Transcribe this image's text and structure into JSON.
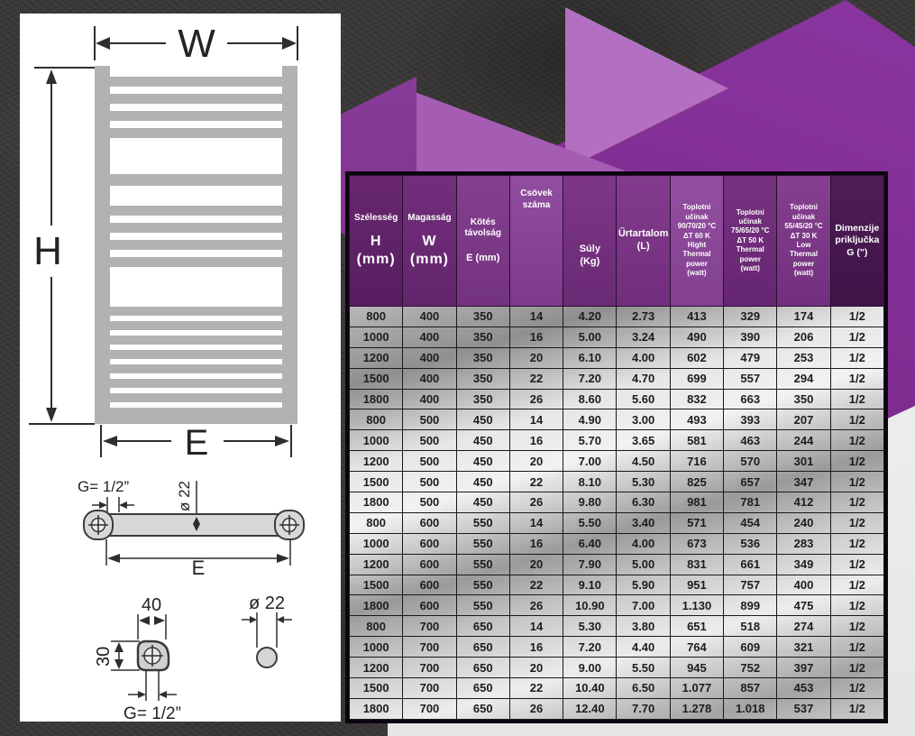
{
  "colors": {
    "accent_purple": "#7c2b8d",
    "accent_purple_light": "#b36fc0",
    "accent_purple_dark": "#4f1d57",
    "table_frame": "#0d0511",
    "panel_white": "#ffffff"
  },
  "diagram": {
    "front_view": {
      "width_label": "W",
      "height_label": "H",
      "bottom_spacing_label": "E"
    },
    "tube_detail": {
      "connection_label": "G= 1/2”",
      "diameter_label": "ø 22",
      "spacing_label": "E"
    },
    "bracket_detail": {
      "width_label": "40",
      "height_label": "30",
      "connection_label": "G= 1/2”"
    },
    "pipe_detail": {
      "diameter_label": "ø 22"
    }
  },
  "table": {
    "columns": [
      {
        "key": "szelesseg",
        "valign": "mid",
        "lines": [
          {
            "t": "Szélesség",
            "cls": "sm"
          },
          {
            "t": "H",
            "cls": "lg mt"
          },
          {
            "t": "(mm)",
            "cls": "lg"
          }
        ]
      },
      {
        "key": "magassag",
        "valign": "mid",
        "lines": [
          {
            "t": "Magasság",
            "cls": "sm"
          },
          {
            "t": "W",
            "cls": "lg mt"
          },
          {
            "t": "(mm)",
            "cls": "lg"
          }
        ]
      },
      {
        "key": "kotes-tavolsag",
        "valign": "mid",
        "lines": [
          {
            "t": "Kötés",
            "cls": "sm"
          },
          {
            "t": "távolság",
            "cls": "sm"
          },
          {
            "t": "E (mm)",
            "cls": "md gap-top"
          }
        ]
      },
      {
        "key": "csovek-szama",
        "valign": "top",
        "lines": [
          {
            "t": "Csövek",
            "cls": "sm"
          },
          {
            "t": "száma",
            "cls": "sm"
          }
        ]
      },
      {
        "key": "suly",
        "valign": "low",
        "lines": [
          {
            "t": "Súly",
            "cls": "md"
          },
          {
            "t": "(Kg)",
            "cls": "md"
          }
        ]
      },
      {
        "key": "urtartalom",
        "valign": "mid",
        "lines": [
          {
            "t": "Űrtartalom",
            "cls": "md"
          },
          {
            "t": "(L)",
            "cls": "md"
          }
        ]
      },
      {
        "key": "thermal-60k",
        "valign": "mid",
        "lines": [
          {
            "t": "Toplotni",
            "cls": "xs"
          },
          {
            "t": "učinak",
            "cls": "xs"
          },
          {
            "t": "90/70/20 °C",
            "cls": "xs"
          },
          {
            "t": "ΔT 60 K",
            "cls": "xs"
          },
          {
            "t": "Hight",
            "cls": "xs"
          },
          {
            "t": "Thermal",
            "cls": "xs"
          },
          {
            "t": "power",
            "cls": "xs"
          },
          {
            "t": "(watt)",
            "cls": "xs"
          }
        ]
      },
      {
        "key": "thermal-50k",
        "valign": "mid",
        "lines": [
          {
            "t": "Toplotni",
            "cls": "xs"
          },
          {
            "t": "učinak",
            "cls": "xs"
          },
          {
            "t": "75/65/20 °C",
            "cls": "xs"
          },
          {
            "t": "ΔT 50 K",
            "cls": "xs"
          },
          {
            "t": "Thermal",
            "cls": "xs"
          },
          {
            "t": "power",
            "cls": "xs"
          },
          {
            "t": "(watt)",
            "cls": "xs"
          }
        ]
      },
      {
        "key": "thermal-30k",
        "valign": "mid",
        "lines": [
          {
            "t": "Toplotni",
            "cls": "xs"
          },
          {
            "t": "učinak",
            "cls": "xs"
          },
          {
            "t": "55/45/20 °C",
            "cls": "xs"
          },
          {
            "t": "ΔT 30 K",
            "cls": "xs"
          },
          {
            "t": "Low",
            "cls": "xs"
          },
          {
            "t": "Thermal",
            "cls": "xs"
          },
          {
            "t": "power",
            "cls": "xs"
          },
          {
            "t": "(watt)",
            "cls": "xs"
          }
        ]
      },
      {
        "key": "dimenzije",
        "valign": "mid",
        "lines": [
          {
            "t": "Dimenzije",
            "cls": "md2"
          },
          {
            "t": "priključka",
            "cls": "md2"
          },
          {
            "t": "G (\")",
            "cls": "md2"
          }
        ]
      }
    ],
    "rows": [
      [
        "800",
        "400",
        "350",
        "14",
        "4.20",
        "2.73",
        "413",
        "329",
        "174",
        "1/2"
      ],
      [
        "1000",
        "400",
        "350",
        "16",
        "5.00",
        "3.24",
        "490",
        "390",
        "206",
        "1/2"
      ],
      [
        "1200",
        "400",
        "350",
        "20",
        "6.10",
        "4.00",
        "602",
        "479",
        "253",
        "1/2"
      ],
      [
        "1500",
        "400",
        "350",
        "22",
        "7.20",
        "4.70",
        "699",
        "557",
        "294",
        "1/2"
      ],
      [
        "1800",
        "400",
        "350",
        "26",
        "8.60",
        "5.60",
        "832",
        "663",
        "350",
        "1/2"
      ],
      [
        "800",
        "500",
        "450",
        "14",
        "4.90",
        "3.00",
        "493",
        "393",
        "207",
        "1/2"
      ],
      [
        "1000",
        "500",
        "450",
        "16",
        "5.70",
        "3.65",
        "581",
        "463",
        "244",
        "1/2"
      ],
      [
        "1200",
        "500",
        "450",
        "20",
        "7.00",
        "4.50",
        "716",
        "570",
        "301",
        "1/2"
      ],
      [
        "1500",
        "500",
        "450",
        "22",
        "8.10",
        "5.30",
        "825",
        "657",
        "347",
        "1/2"
      ],
      [
        "1800",
        "500",
        "450",
        "26",
        "9.80",
        "6.30",
        "981",
        "781",
        "412",
        "1/2"
      ],
      [
        "800",
        "600",
        "550",
        "14",
        "5.50",
        "3.40",
        "571",
        "454",
        "240",
        "1/2"
      ],
      [
        "1000",
        "600",
        "550",
        "16",
        "6.40",
        "4.00",
        "673",
        "536",
        "283",
        "1/2"
      ],
      [
        "1200",
        "600",
        "550",
        "20",
        "7.90",
        "5.00",
        "831",
        "661",
        "349",
        "1/2"
      ],
      [
        "1500",
        "600",
        "550",
        "22",
        "9.10",
        "5.90",
        "951",
        "757",
        "400",
        "1/2"
      ],
      [
        "1800",
        "600",
        "550",
        "26",
        "10.90",
        "7.00",
        "1.130",
        "899",
        "475",
        "1/2"
      ],
      [
        "800",
        "700",
        "650",
        "14",
        "5.30",
        "3.80",
        "651",
        "518",
        "274",
        "1/2"
      ],
      [
        "1000",
        "700",
        "650",
        "16",
        "7.20",
        "4.40",
        "764",
        "609",
        "321",
        "1/2"
      ],
      [
        "1200",
        "700",
        "650",
        "20",
        "9.00",
        "5.50",
        "945",
        "752",
        "397",
        "1/2"
      ],
      [
        "1500",
        "700",
        "650",
        "22",
        "10.40",
        "6.50",
        "1.077",
        "857",
        "453",
        "1/2"
      ],
      [
        "1800",
        "700",
        "650",
        "26",
        "12.40",
        "7.70",
        "1.278",
        "1.018",
        "537",
        "1/2"
      ]
    ]
  }
}
